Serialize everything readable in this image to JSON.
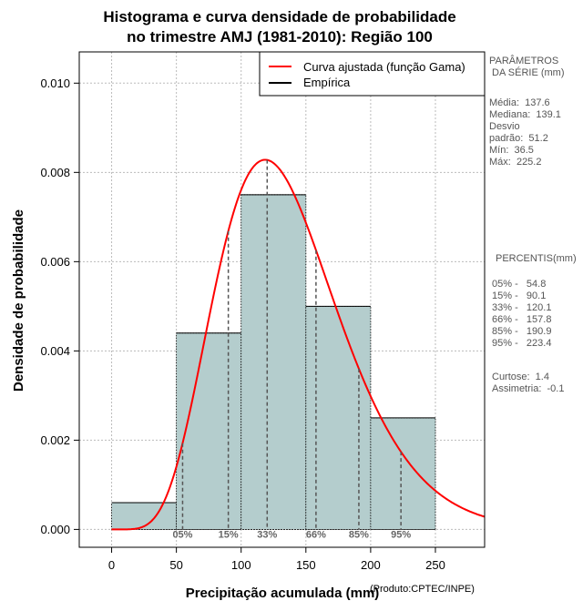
{
  "chart_data": {
    "type": "bar",
    "title_line1": "Histograma e curva densidade de probabilidade",
    "title_line2": "no trimestre AMJ (1981-2010): Região 100",
    "xlabel": "Precipitação acumulada (mm)",
    "ylabel": "Densidade de probabilidade",
    "credit": "(Produto:CPTEC/INPE)",
    "xlim": [
      -25,
      288
    ],
    "ylim": [
      -0.0004,
      0.0107
    ],
    "x_ticks": [
      0,
      50,
      100,
      150,
      200,
      250
    ],
    "y_ticks": [
      0.0,
      0.002,
      0.004,
      0.006,
      0.008,
      0.01
    ],
    "y_tick_labels": [
      "0.000",
      "0.002",
      "0.004",
      "0.006",
      "0.008",
      "0.010"
    ],
    "grid": true,
    "bins": [
      {
        "start": 0,
        "end": 50,
        "value": 0.0006
      },
      {
        "start": 50,
        "end": 100,
        "value": 0.0044
      },
      {
        "start": 100,
        "end": 150,
        "value": 0.0075
      },
      {
        "start": 150,
        "end": 200,
        "value": 0.005
      },
      {
        "start": 200,
        "end": 250,
        "value": 0.0025
      }
    ],
    "bar_color": "#b4cdcd",
    "curve_color": "#ff0000",
    "gamma_fit": {
      "mean": 137.6,
      "sd": 51.2
    },
    "legend": [
      {
        "label": "Curva ajustada (função Gama)",
        "color": "#ff0000"
      },
      {
        "label": "Empírica",
        "color": "#000000"
      }
    ],
    "percentile_markers": [
      {
        "label": "05%",
        "value": 54.8
      },
      {
        "label": "15%",
        "value": 90.1
      },
      {
        "label": "33%",
        "value": 120.1
      },
      {
        "label": "66%",
        "value": 157.8
      },
      {
        "label": "85%",
        "value": 190.9
      },
      {
        "label": "95%",
        "value": 223.4
      }
    ]
  },
  "params": {
    "heading": "PARÂMETROS\n DA SÉRIE (mm)",
    "body": "Média:  137.6\nMediana:  139.1\nDesvio\npadrão:  51.2\nMín:  36.5\nMáx:  225.2"
  },
  "percentis": {
    "heading": "PERCENTIS(mm)",
    "body": "05% -   54.8\n15% -   90.1\n33% -   120.1\n66% -   157.8\n85% -   190.9\n95% -   223.4",
    "stats": "Curtose:  1.4\nAssimetria:  -0.1"
  }
}
